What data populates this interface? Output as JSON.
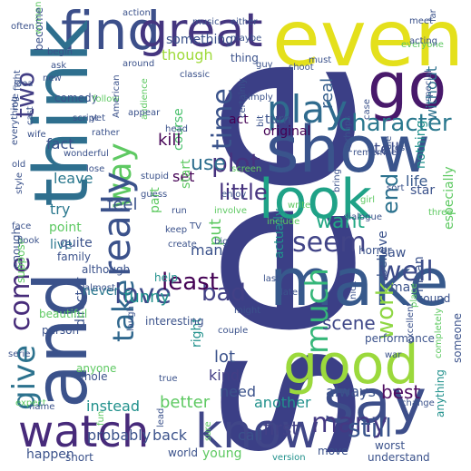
{
  "image": {
    "kind": "word cloud",
    "background": "#ffffff",
    "palette": [
      "#440154",
      "#3b528b",
      "#21918c",
      "#5ec962",
      "#fde725"
    ]
  },
  "words": [
    {
      "text": "see",
      "color": "#3b3f86"
    },
    {
      "text": "even",
      "color": "#e4e01c"
    },
    {
      "text": "find",
      "color": "#3c4f8a"
    },
    {
      "text": "great",
      "color": "#44357f"
    },
    {
      "text": "go",
      "color": "#48196b"
    },
    {
      "text": "show",
      "color": "#3a548c"
    },
    {
      "text": "think",
      "color": "#2e6f8e"
    },
    {
      "text": "and",
      "color": "#3b528b"
    },
    {
      "text": "play",
      "color": "#2f6b8e"
    },
    {
      "text": "look",
      "color": "#1fa287"
    },
    {
      "text": "make",
      "color": "#37598c"
    },
    {
      "text": "good",
      "color": "#9bd93c"
    },
    {
      "text": "say",
      "color": "#3d4e8a"
    },
    {
      "text": "watch",
      "color": "#472a7a"
    },
    {
      "text": "know",
      "color": "#404688"
    },
    {
      "text": "many",
      "color": "#443983"
    },
    {
      "text": "way",
      "color": "#5ec962"
    },
    {
      "text": "really",
      "color": "#3b528b"
    },
    {
      "text": "give",
      "color": "#2c728e"
    },
    {
      "text": "come",
      "color": "#472c7a"
    },
    {
      "text": "take",
      "color": "#31688e"
    },
    {
      "text": "love",
      "color": "#3e4a89"
    },
    {
      "text": "bad",
      "color": "#424086"
    },
    {
      "text": "plot",
      "color": "#46327e"
    },
    {
      "text": "character",
      "color": "#2a788e"
    },
    {
      "text": "seem",
      "color": "#414487"
    },
    {
      "text": "well",
      "color": "#3e4c8a"
    },
    {
      "text": "much",
      "color": "#35b779"
    },
    {
      "text": "work",
      "color": "#8fd744"
    },
    {
      "text": "two",
      "color": "#433e85"
    },
    {
      "text": "time",
      "color": "#3a538b"
    },
    {
      "text": "use",
      "color": "#2e6e8e"
    },
    {
      "text": "real",
      "color": "#355f8d"
    },
    {
      "text": "tell",
      "color": "#3d4d8a"
    },
    {
      "text": "life",
      "color": "#38598c"
    },
    {
      "text": "little",
      "color": "#46337e"
    },
    {
      "text": "end",
      "color": "#2c728e"
    },
    {
      "text": "want",
      "color": "#22a884"
    },
    {
      "text": "scene",
      "color": "#3f4788"
    },
    {
      "text": "first",
      "color": "#424186"
    },
    {
      "text": "still",
      "color": "#3a548c"
    },
    {
      "text": "best",
      "color": "#4e0d62"
    },
    {
      "text": "kind",
      "color": "#433e85"
    },
    {
      "text": "lot",
      "color": "#3b528b"
    },
    {
      "text": "though",
      "color": "#9fda3a"
    },
    {
      "text": "something",
      "color": "#3b528b"
    },
    {
      "text": "without",
      "color": "#2c728e"
    },
    {
      "text": "course",
      "color": "#4ac16d"
    },
    {
      "text": "part",
      "color": "#5ec962"
    },
    {
      "text": "fact",
      "color": "#3b528b"
    },
    {
      "text": "feel",
      "color": "#3b528b"
    },
    {
      "text": "leave",
      "color": "#2a788e"
    },
    {
      "text": "try",
      "color": "#2a788e"
    },
    {
      "text": "point",
      "color": "#5ec962"
    },
    {
      "text": "live",
      "color": "#2a788e"
    },
    {
      "text": "least",
      "color": "#440154"
    },
    {
      "text": "funny",
      "color": "#21918c"
    },
    {
      "text": "man",
      "color": "#3b528b"
    },
    {
      "text": "put",
      "color": "#5ec962"
    },
    {
      "text": "actually",
      "color": "#21918c"
    },
    {
      "text": "believe",
      "color": "#3b528b"
    },
    {
      "text": "mean",
      "color": "#3b528b"
    },
    {
      "text": "director",
      "color": "#3b528b"
    },
    {
      "text": "never",
      "color": "#2a788e"
    },
    {
      "text": "better",
      "color": "#5ec962"
    },
    {
      "text": "another",
      "color": "#21918c"
    },
    {
      "text": "always",
      "color": "#3b528b"
    },
    {
      "text": "need",
      "color": "#3b528b"
    },
    {
      "text": "call",
      "color": "#3b528b"
    },
    {
      "text": "right",
      "color": "#21918c"
    },
    {
      "text": "horror",
      "color": "#3b528b"
    },
    {
      "text": "kill",
      "color": "#440154"
    },
    {
      "text": "set",
      "color": "#440154"
    },
    {
      "text": "start",
      "color": "#5ec962"
    },
    {
      "text": "act",
      "color": "#440154"
    },
    {
      "text": "turn",
      "color": "#3b528b"
    },
    {
      "text": "original",
      "color": "#440154"
    },
    {
      "text": "nothing",
      "color": "#21918c"
    },
    {
      "text": "especially",
      "color": "#5ec962"
    },
    {
      "text": "may",
      "color": "#3b528b"
    },
    {
      "text": "help",
      "color": "#21918c"
    },
    {
      "text": "saw",
      "color": "#3b528b"
    },
    {
      "text": "star",
      "color": "#3b528b"
    },
    {
      "text": "sound",
      "color": "#3b528b"
    },
    {
      "text": "performance",
      "color": "#3b528b"
    },
    {
      "text": "instead",
      "color": "#21918c"
    },
    {
      "text": "probably",
      "color": "#3b528b"
    },
    {
      "text": "world",
      "color": "#3b528b"
    },
    {
      "text": "young",
      "color": "#5ec962"
    },
    {
      "text": "back",
      "color": "#3b528b"
    },
    {
      "text": "happen",
      "color": "#3b528b"
    },
    {
      "text": "short",
      "color": "#3b528b"
    },
    {
      "text": "understand",
      "color": "#3b528b"
    },
    {
      "text": "worst",
      "color": "#3b528b"
    },
    {
      "text": "move",
      "color": "#3b528b"
    },
    {
      "text": "version",
      "color": "#21918c"
    },
    {
      "text": "anything",
      "color": "#21918c"
    },
    {
      "text": "quite",
      "color": "#3b528b"
    },
    {
      "text": "family",
      "color": "#3b528b"
    },
    {
      "text": "although",
      "color": "#3b528b"
    },
    {
      "text": "almost",
      "color": "#3b528b"
    },
    {
      "text": "enough",
      "color": "#3b528b"
    },
    {
      "text": "suppose",
      "color": "#5ec962"
    },
    {
      "text": "beautiful",
      "color": "#5ec962"
    },
    {
      "text": "person",
      "color": "#3b528b"
    },
    {
      "text": "serie",
      "color": "#3b528b"
    },
    {
      "text": "anyone",
      "color": "#5ec962"
    },
    {
      "text": "whole",
      "color": "#3b528b"
    },
    {
      "text": "expect",
      "color": "#5ec962"
    },
    {
      "text": "name",
      "color": "#3b528b"
    },
    {
      "text": "fun",
      "color": "#5ec962"
    },
    {
      "text": "lead",
      "color": "#3b528b"
    },
    {
      "text": "sure",
      "color": "#5ec962"
    },
    {
      "text": "true",
      "color": "#3b528b"
    },
    {
      "text": "couple",
      "color": "#3b528b"
    },
    {
      "text": "laugh",
      "color": "#3b528b"
    },
    {
      "text": "interesting",
      "color": "#3b528b"
    },
    {
      "text": "might",
      "color": "#3b528b"
    },
    {
      "text": "last",
      "color": "#3b528b"
    },
    {
      "text": "later",
      "color": "#3b528b"
    },
    {
      "text": "nice",
      "color": "#3b528b"
    },
    {
      "text": "excellent",
      "color": "#3b528b"
    },
    {
      "text": "war",
      "color": "#3b528b"
    },
    {
      "text": "place",
      "color": "#5ec962"
    },
    {
      "text": "someone",
      "color": "#3b528b"
    },
    {
      "text": "change",
      "color": "#3b528b"
    },
    {
      "text": "completely",
      "color": "#5ec962"
    },
    {
      "text": "action",
      "color": "#3b528b"
    },
    {
      "text": "music",
      "color": "#3b528b"
    },
    {
      "text": "either",
      "color": "#3b528b"
    },
    {
      "text": "maybe",
      "color": "#3b528b"
    },
    {
      "text": "thing",
      "color": "#3b528b"
    },
    {
      "text": "guy",
      "color": "#3b528b"
    },
    {
      "text": "shoot",
      "color": "#3b528b"
    },
    {
      "text": "everyone",
      "color": "#5ec962"
    },
    {
      "text": "acting",
      "color": "#3b528b"
    },
    {
      "text": "far",
      "color": "#3b528b"
    },
    {
      "text": "meet",
      "color": "#3b528b"
    },
    {
      "text": "must",
      "color": "#3b528b"
    },
    {
      "text": "around",
      "color": "#3b528b"
    },
    {
      "text": "classic",
      "color": "#3b528b"
    },
    {
      "text": "begin",
      "color": "#3b528b"
    },
    {
      "text": "ask",
      "color": "#3b528b"
    },
    {
      "text": "often",
      "color": "#3b528b"
    },
    {
      "text": "woman",
      "color": "#5ec962"
    },
    {
      "text": "become",
      "color": "#3b528b"
    },
    {
      "text": "new",
      "color": "#3b528b"
    },
    {
      "text": "idea",
      "color": "#3b528b"
    },
    {
      "text": "fight",
      "color": "#3b528b"
    },
    {
      "text": "comedy",
      "color": "#3b528b"
    },
    {
      "text": "script",
      "color": "#3b528b"
    },
    {
      "text": "yet",
      "color": "#3b528b"
    },
    {
      "text": "follow",
      "color": "#5ec962"
    },
    {
      "text": "American",
      "color": "#3b528b"
    },
    {
      "text": "audience",
      "color": "#5ec962"
    },
    {
      "text": "appear",
      "color": "#3b528b"
    },
    {
      "text": "rather",
      "color": "#3b528b"
    },
    {
      "text": "head",
      "color": "#3b528b"
    },
    {
      "text": "wife",
      "color": "#3b528b"
    },
    {
      "text": "cast",
      "color": "#3b528b"
    },
    {
      "text": "role",
      "color": "#3b528b"
    },
    {
      "text": "old",
      "color": "#3b528b"
    },
    {
      "text": "everything",
      "color": "#3b528b"
    },
    {
      "text": "wonderful",
      "color": "#3b528b"
    },
    {
      "text": "lose",
      "color": "#3b528b"
    },
    {
      "text": "stupid",
      "color": "#3b528b"
    },
    {
      "text": "guess",
      "color": "#3b528b"
    },
    {
      "text": "screen",
      "color": "#5ec962"
    },
    {
      "text": "enjoy",
      "color": "#3b528b"
    },
    {
      "text": "include",
      "color": "#5ec962"
    },
    {
      "text": "write",
      "color": "#5ec962"
    },
    {
      "text": "face",
      "color": "#3b528b"
    },
    {
      "text": "book",
      "color": "#3b528b"
    },
    {
      "text": "style",
      "color": "#3b528b"
    },
    {
      "text": "involve",
      "color": "#5ec962"
    },
    {
      "text": "keep",
      "color": "#3b528b"
    },
    {
      "text": "create",
      "color": "#3b528b"
    },
    {
      "text": "big",
      "color": "#3b528b"
    },
    {
      "text": "bring",
      "color": "#3b528b"
    },
    {
      "text": "dialogue",
      "color": "#3b528b"
    },
    {
      "text": "girl",
      "color": "#5ec962"
    },
    {
      "text": "sort",
      "color": "#3b528b"
    },
    {
      "text": "three",
      "color": "#5ec962"
    },
    {
      "text": "perhaps",
      "color": "#3b528b"
    },
    {
      "text": "remember",
      "color": "#3b528b"
    },
    {
      "text": "die",
      "color": "#3b528b"
    },
    {
      "text": "case",
      "color": "#3b528b"
    },
    {
      "text": "special",
      "color": "#3b528b"
    },
    {
      "text": "simply",
      "color": "#3b528b"
    },
    {
      "text": "bit",
      "color": "#3b528b"
    },
    {
      "text": "certainly",
      "color": "#3b528b"
    },
    {
      "text": "run",
      "color": "#3b528b"
    },
    {
      "text": "TV",
      "color": "#3b528b"
    },
    {
      "text": "rest",
      "color": "#3b528b"
    }
  ]
}
